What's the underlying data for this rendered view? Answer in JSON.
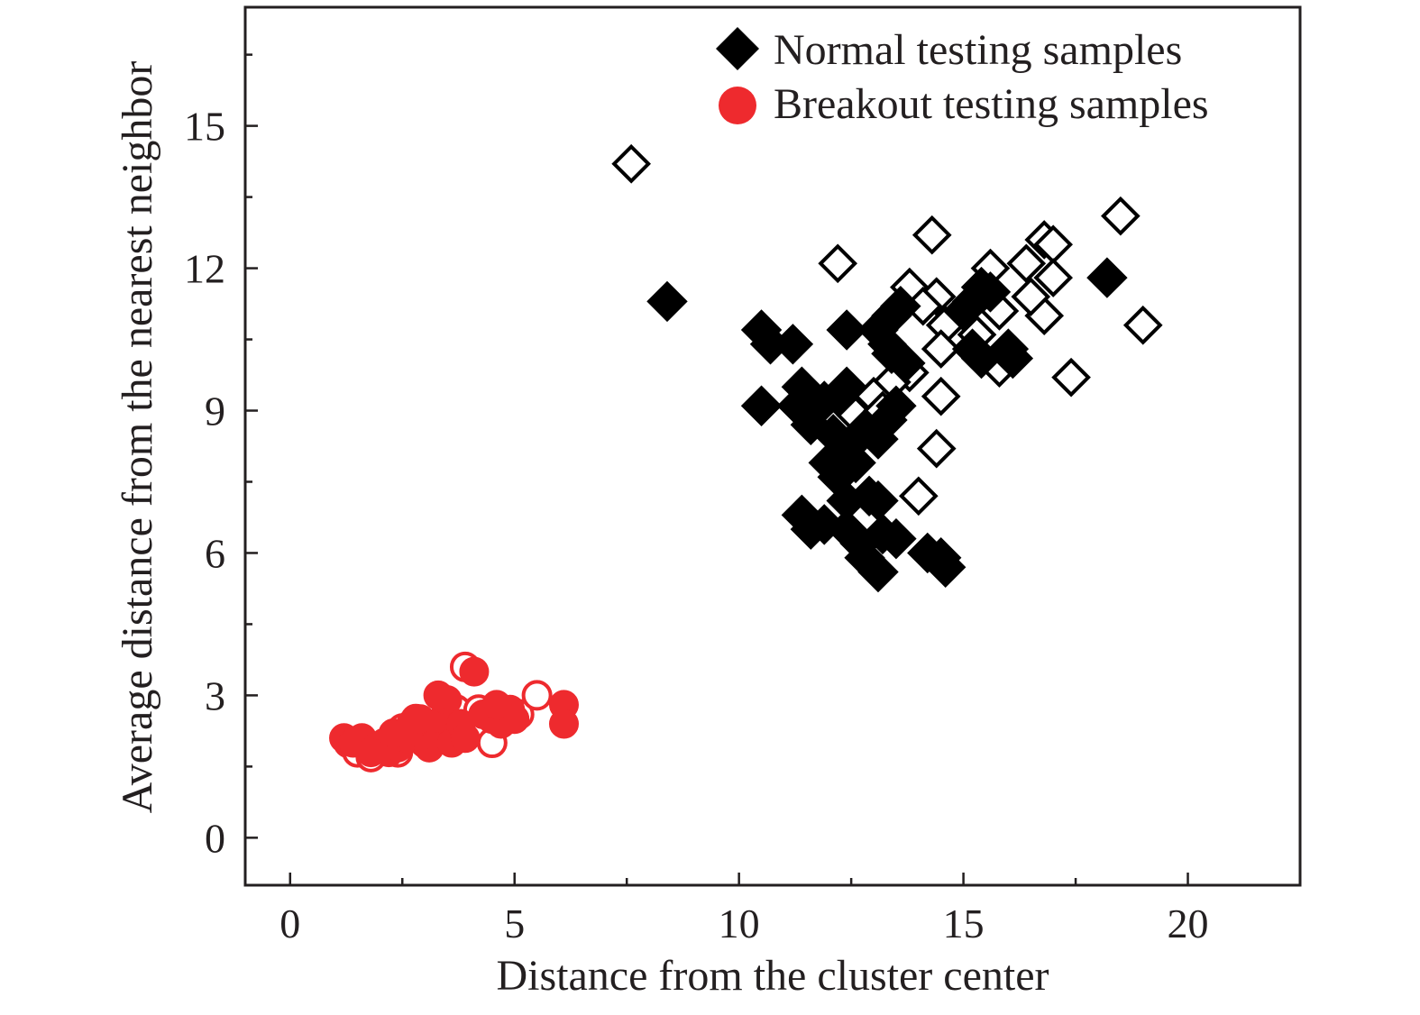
{
  "chart_data": {
    "type": "scatter",
    "title": "",
    "xlabel": "Distance from the cluster center",
    "ylabel": "Average distance from the nearest neighbor",
    "xlim": [
      -1,
      22.5
    ],
    "ylim": [
      -1,
      17.5
    ],
    "xticks": [
      0,
      5,
      10,
      15,
      20
    ],
    "yticks": [
      0,
      3,
      6,
      9,
      12,
      15
    ],
    "xtick_labels": [
      "0",
      "5",
      "10",
      "15",
      "20"
    ],
    "ytick_labels": [
      "0",
      "3",
      "6",
      "9",
      "12",
      "15"
    ],
    "grid": false,
    "legend_position": "top-right",
    "colors": {
      "normal": "#000000",
      "breakout": "#ee2a2e",
      "axis": "#231f20"
    },
    "series": [
      {
        "name": "Normal testing samples",
        "marker": "diamond",
        "color": "#000000",
        "filled_points": [
          [
            8.4,
            11.3
          ],
          [
            10.5,
            10.7
          ],
          [
            10.7,
            10.4
          ],
          [
            11.2,
            10.4
          ],
          [
            10.5,
            9.1
          ],
          [
            11.4,
            9.5
          ],
          [
            11.6,
            8.7
          ],
          [
            11.9,
            9.2
          ],
          [
            12.2,
            9.3
          ],
          [
            12.4,
            9.5
          ],
          [
            12.1,
            8.5
          ],
          [
            12.4,
            8.2
          ],
          [
            12.2,
            7.6
          ],
          [
            12.6,
            7.9
          ],
          [
            12.8,
            8.6
          ],
          [
            13.1,
            8.4
          ],
          [
            13.3,
            8.8
          ],
          [
            13.5,
            9.1
          ],
          [
            12.4,
            7.1
          ],
          [
            12.9,
            7.2
          ],
          [
            13.1,
            7.1
          ],
          [
            11.4,
            6.8
          ],
          [
            11.6,
            6.5
          ],
          [
            11.9,
            6.6
          ],
          [
            12.4,
            6.5
          ],
          [
            12.7,
            6.2
          ],
          [
            12.8,
            5.9
          ],
          [
            13.1,
            5.6
          ],
          [
            13.2,
            6.4
          ],
          [
            13.5,
            6.3
          ],
          [
            14.2,
            6.0
          ],
          [
            14.6,
            5.7
          ],
          [
            14.5,
            5.9
          ],
          [
            12.4,
            10.7
          ],
          [
            13.1,
            10.7
          ],
          [
            13.4,
            11.0
          ],
          [
            13.6,
            11.2
          ],
          [
            13.4,
            10.2
          ],
          [
            13.7,
            10.0
          ],
          [
            15.0,
            11.1
          ],
          [
            15.2,
            11.3
          ],
          [
            15.4,
            11.6
          ],
          [
            15.6,
            11.5
          ],
          [
            15.2,
            10.3
          ],
          [
            15.4,
            10.1
          ],
          [
            16.0,
            10.3
          ],
          [
            16.1,
            10.1
          ],
          [
            18.2,
            11.8
          ],
          [
            11.3,
            9.1
          ],
          [
            12.0,
            7.9
          ]
        ],
        "open_points": [
          [
            7.6,
            14.2
          ],
          [
            12.2,
            12.1
          ],
          [
            14.3,
            12.7
          ],
          [
            13.8,
            11.6
          ],
          [
            14.4,
            11.4
          ],
          [
            15.6,
            12.0
          ],
          [
            16.4,
            12.1
          ],
          [
            16.8,
            12.6
          ],
          [
            17.0,
            12.5
          ],
          [
            17.0,
            11.8
          ],
          [
            18.5,
            13.1
          ],
          [
            19.0,
            10.8
          ],
          [
            17.4,
            9.7
          ],
          [
            16.8,
            11.0
          ],
          [
            15.8,
            11.1
          ],
          [
            14.6,
            10.8
          ],
          [
            14.5,
            10.3
          ],
          [
            14.5,
            9.3
          ],
          [
            14.4,
            8.2
          ],
          [
            14.0,
            7.2
          ],
          [
            15.8,
            9.9
          ],
          [
            13.8,
            9.8
          ],
          [
            13.4,
            9.6
          ],
          [
            13.0,
            9.3
          ],
          [
            12.6,
            8.9
          ],
          [
            13.3,
            10.4
          ],
          [
            14.1,
            11.2
          ],
          [
            13.2,
            9.0
          ],
          [
            15.3,
            10.6
          ],
          [
            16.5,
            11.4
          ]
        ]
      },
      {
        "name": "Breakout testing samples",
        "marker": "circle",
        "color": "#ee2a2e",
        "filled_points": [
          [
            1.2,
            2.1
          ],
          [
            1.4,
            2.0
          ],
          [
            1.6,
            2.1
          ],
          [
            1.9,
            1.9
          ],
          [
            2.1,
            2.0
          ],
          [
            2.2,
            1.8
          ],
          [
            2.4,
            1.9
          ],
          [
            2.6,
            2.1
          ],
          [
            2.7,
            2.4
          ],
          [
            2.9,
            2.2
          ],
          [
            3.1,
            1.9
          ],
          [
            3.3,
            2.1
          ],
          [
            3.4,
            2.5
          ],
          [
            3.5,
            2.9
          ],
          [
            3.3,
            3.0
          ],
          [
            3.6,
            2.0
          ],
          [
            3.8,
            2.4
          ],
          [
            4.1,
            3.5
          ],
          [
            4.3,
            2.6
          ],
          [
            4.5,
            2.5
          ],
          [
            4.7,
            2.4
          ],
          [
            4.9,
            2.7
          ],
          [
            5.0,
            2.5
          ],
          [
            6.1,
            2.8
          ],
          [
            6.1,
            2.4
          ],
          [
            1.8,
            1.8
          ],
          [
            2.3,
            2.2
          ],
          [
            2.9,
            2.5
          ],
          [
            3.9,
            2.1
          ],
          [
            4.6,
            2.8
          ]
        ],
        "open_points": [
          [
            1.3,
            2.0
          ],
          [
            1.5,
            1.8
          ],
          [
            1.8,
            1.7
          ],
          [
            2.0,
            1.9
          ],
          [
            2.5,
            2.3
          ],
          [
            2.8,
            2.5
          ],
          [
            3.2,
            2.3
          ],
          [
            3.7,
            2.7
          ],
          [
            3.9,
            3.6
          ],
          [
            4.2,
            2.7
          ],
          [
            4.5,
            2.0
          ],
          [
            5.1,
            2.6
          ],
          [
            5.5,
            3.0
          ],
          [
            2.4,
            1.8
          ],
          [
            3.0,
            2.0
          ]
        ]
      }
    ]
  }
}
